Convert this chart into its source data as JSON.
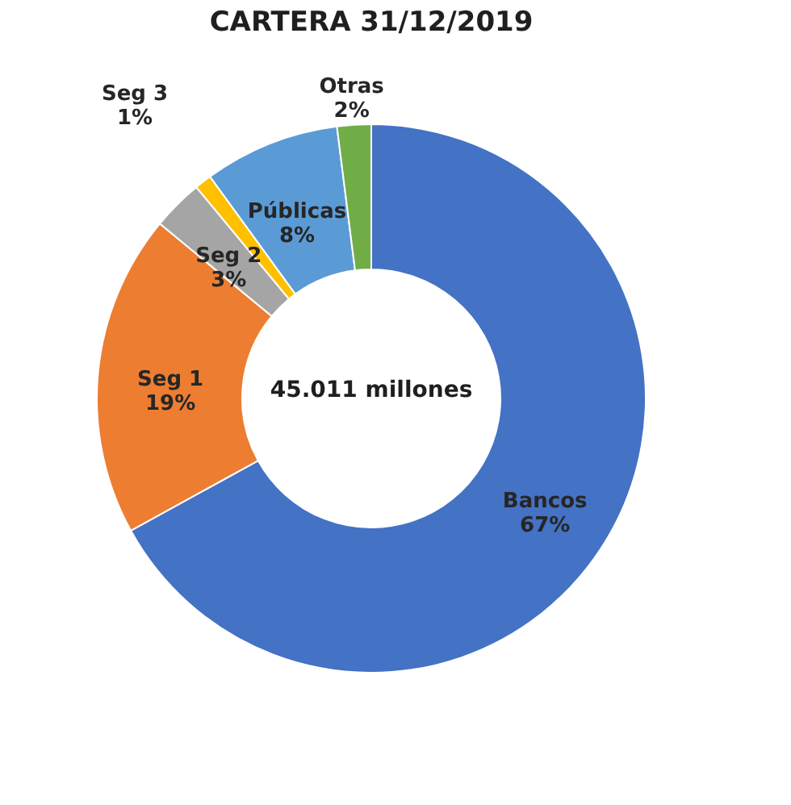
{
  "chart_data": {
    "type": "donut",
    "title": "CARTERA 31/12/2019",
    "categories": [
      "Bancos",
      "Seg 1",
      "Seg 2",
      "Seg 3",
      "Públicas",
      "Otras"
    ],
    "values": [
      67,
      19,
      3,
      1,
      8,
      2
    ],
    "value_labels": [
      "67%",
      "19%",
      "3%",
      "1%",
      "8%",
      "2%"
    ],
    "colors": [
      "#4472c4",
      "#ed7d31",
      "#a5a5a5",
      "#ffc000",
      "#5b9bd5",
      "#70ad47"
    ],
    "annotations": [
      "45.011 millones"
    ],
    "legend": false
  }
}
